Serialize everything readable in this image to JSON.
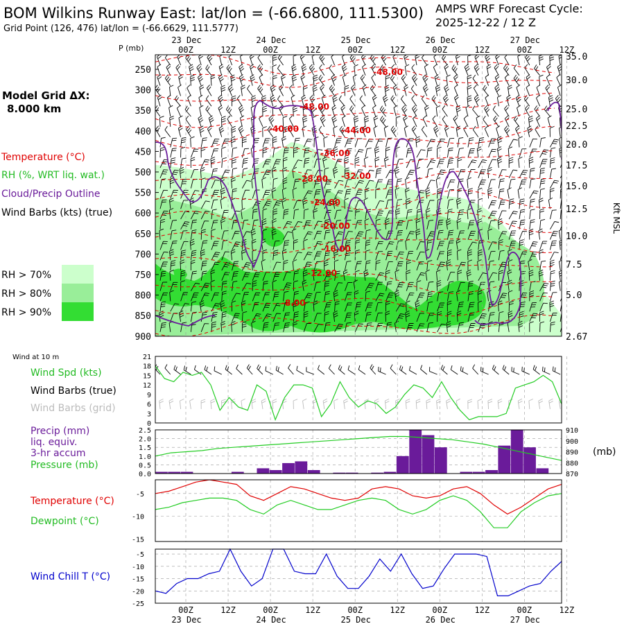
{
  "header": {
    "title": "BOM Wilkins Runway East:  lat/lon = (-66.6800, 111.5300)",
    "grid_point": "Grid Point (126, 476) lat/lon = (-66.6629, 111.5777)",
    "cycle_line1": "AMPS WRF Forecast Cycle:",
    "cycle_line2": "2025-12-22 / 12  Z"
  },
  "left_panel": {
    "model_grid_line1": "Model Grid ΔX:",
    "model_grid_line2": "8.000 km",
    "temperature": "Temperature (°C)",
    "rh": "RH (%, WRT liq. wat.)",
    "cloud": "Cloud/Precip Outline",
    "wind": "Wind Barbs (kts) (true)",
    "rh70": "RH > 70%",
    "rh80": "RH > 80%",
    "rh90": "RH > 90%",
    "wind10m_title": "Wind at 10 m",
    "wind_spd": "Wind Spd (kts)",
    "wind_barbs_true": "Wind Barbs (true)",
    "wind_barbs_grid": "Wind Barbs (grid)",
    "precip1": "Precip (mm)",
    "precip2": "liq. equiv.",
    "precip3": "3-hr accum",
    "pressure": "Pressure (mb)",
    "temp2": "Temperature (°C)",
    "dewpoint": "Dewpoint (°C)",
    "windchill": "Wind Chill T (°C)"
  },
  "colors": {
    "temperature": "#e00000",
    "rh70": "#ccffcc",
    "rh80": "#99ee99",
    "rh90": "#33dd33",
    "cloud": "#6a1b9a",
    "wind_spd": "#22cc22",
    "barbs_grid": "#bbbbbb",
    "precip": "#6a1b9a",
    "windchill": "#0000cc"
  },
  "chart_data": [
    {
      "type": "heatmap",
      "name": "cross-section",
      "y_title": "P (mb)",
      "y_right_title": "Kft MSL",
      "y_ticks": [
        "250",
        "300",
        "350",
        "400",
        "450",
        "500",
        "550",
        "600",
        "650",
        "700",
        "750",
        "800",
        "850",
        "900"
      ],
      "y_right_ticks": [
        "35.0",
        "30.0",
        "25.0",
        "22.5",
        "20.0",
        "17.5",
        "15.0",
        "12.5",
        "10.0",
        "7.5",
        "5.0",
        "2.67"
      ],
      "x_ticks_top": [
        "00Z",
        "12Z",
        "00Z",
        "12Z",
        "00Z",
        "12Z",
        "00Z",
        "12Z",
        "00Z",
        "12Z"
      ],
      "day_labels": [
        "23 Dec",
        "24 Dec",
        "25 Dec",
        "26 Dec",
        "27 Dec"
      ],
      "temp_labels": [
        "-48.00",
        "-48.00",
        "-40.00",
        "-44.00",
        "-36.00",
        "-32.00",
        "-28.00",
        "-24.00",
        "-20.00",
        "-16.00",
        "-12.00",
        "-8.00"
      ]
    },
    {
      "type": "line",
      "name": "wind-10m",
      "y_ticks": [
        "21",
        "18",
        "15",
        "12",
        "9",
        "6",
        "3",
        "0"
      ],
      "ylim": [
        0,
        21
      ],
      "values": [
        18,
        14,
        13,
        16,
        15,
        16,
        12,
        4,
        8,
        5,
        4,
        12,
        10,
        1,
        8,
        12,
        12,
        11,
        2,
        6,
        13,
        8,
        5,
        7,
        6,
        3,
        5,
        9,
        12,
        11,
        8,
        13,
        8,
        4,
        1,
        2,
        2,
        2,
        3,
        11,
        12,
        13,
        15,
        13,
        6
      ]
    },
    {
      "type": "bar",
      "name": "precip-pressure",
      "y_ticks": [
        "2.5",
        "2.0",
        "1.5",
        "1.0",
        "0.5",
        "0.0"
      ],
      "y_right_ticks": [
        "910",
        "900",
        "890",
        "880",
        "870"
      ],
      "y_right_title": "(mb)",
      "ylim": [
        0,
        2.5
      ],
      "values": [
        0.1,
        0.1,
        0.1,
        0,
        0,
        0,
        0.1,
        0,
        0.3,
        0.2,
        0.6,
        0.7,
        0.2,
        0,
        0.05,
        0.05,
        0,
        0.05,
        0.1,
        1.0,
        2.5,
        2.2,
        1.5,
        0,
        0.1,
        0.1,
        0.2,
        1.6,
        2.5,
        1.5,
        0.3,
        0
      ],
      "pressure": [
        886,
        889,
        890,
        891,
        893,
        894,
        895,
        896,
        897,
        898,
        899,
        900,
        901,
        902,
        903,
        904,
        904,
        903,
        902,
        901,
        899,
        897,
        894,
        891,
        888,
        885,
        882
      ]
    },
    {
      "type": "line",
      "name": "temp-dewpoint",
      "y_ticks": [
        "-5",
        "-10",
        "-15"
      ],
      "ylim": [
        -15.5,
        -2
      ],
      "series": [
        {
          "name": "Temperature",
          "values": [
            -5,
            -4.5,
            -3.5,
            -2.5,
            -2,
            -2.5,
            -3,
            -5.5,
            -6.5,
            -5,
            -3.5,
            -4,
            -5,
            -6,
            -6.5,
            -6,
            -4,
            -3.5,
            -4,
            -5.5,
            -6,
            -5.5,
            -4,
            -3.5,
            -5,
            -7.5,
            -9.5,
            -8,
            -6,
            -4,
            -3
          ]
        },
        {
          "name": "Dewpoint",
          "values": [
            -8.5,
            -8,
            -7,
            -6.5,
            -6,
            -6,
            -6.5,
            -8.5,
            -9.5,
            -7.5,
            -6.5,
            -7.5,
            -8.5,
            -8.5,
            -7.5,
            -6.5,
            -6,
            -6.5,
            -8.5,
            -9.5,
            -8.5,
            -6.5,
            -5.5,
            -6.5,
            -9,
            -12.5,
            -12.5,
            -9,
            -7,
            -5.5,
            -5
          ]
        }
      ]
    },
    {
      "type": "line",
      "name": "wind-chill",
      "y_ticks": [
        "-5",
        "-10",
        "-15",
        "-20",
        "-25"
      ],
      "ylim": [
        -25,
        -3
      ],
      "values": [
        -20,
        -21,
        -17,
        -15,
        -15,
        -13,
        -12,
        -3,
        -12,
        -18,
        -15,
        -3,
        -3,
        -12,
        -13,
        -13,
        -5,
        -14,
        -19,
        -19,
        -14,
        -7,
        -12,
        -5,
        -13,
        -19,
        -18,
        -11,
        -5,
        -5,
        -5,
        -6,
        -22,
        -22,
        -20,
        -18,
        -17,
        -12,
        -8
      ]
    }
  ],
  "x_axis_bottom": {
    "ticks": [
      "00Z",
      "12Z",
      "00Z",
      "12Z",
      "00Z",
      "12Z",
      "00Z",
      "12Z",
      "00Z",
      "12Z"
    ],
    "days": [
      "23 Dec",
      "24 Dec",
      "25 Dec",
      "26 Dec",
      "27 Dec"
    ]
  }
}
